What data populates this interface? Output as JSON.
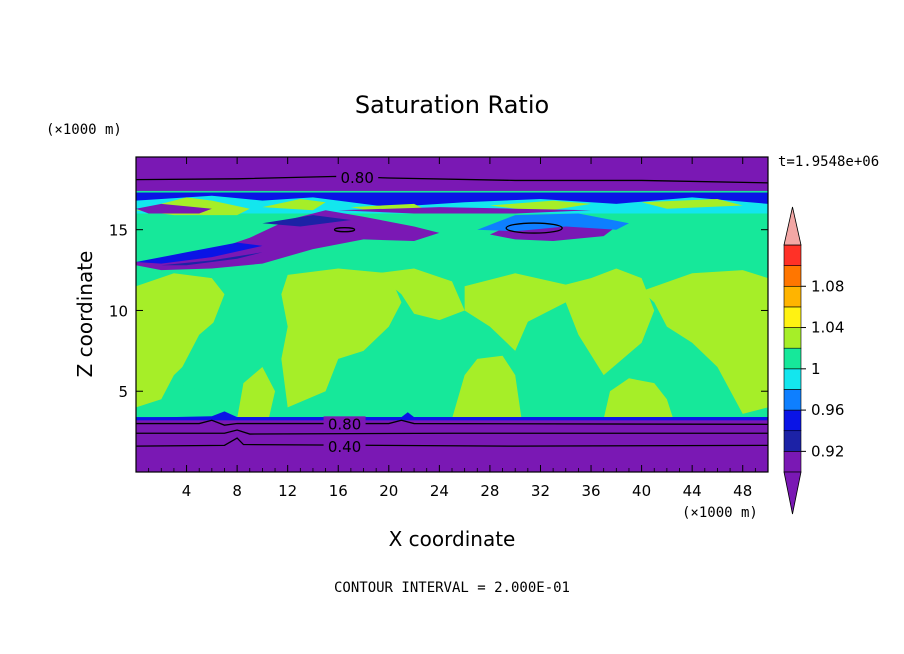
{
  "chart_data": {
    "type": "contour",
    "title": "Saturation Ratio",
    "xlabel": "X coordinate",
    "ylabel": "Z coordinate",
    "x_unit": "(×1000 m)",
    "y_unit": "(×1000 m)",
    "time_label": "t=1.9548e+06",
    "contour_interval_text": "CONTOUR INTERVAL = 2.000E-01",
    "xlim": [
      0,
      50
    ],
    "ylim": [
      0,
      19.5
    ],
    "x_ticks": [
      4,
      8,
      12,
      16,
      20,
      24,
      28,
      32,
      36,
      40,
      44,
      48
    ],
    "y_ticks": [
      5,
      10,
      15
    ],
    "contour_labels": [
      {
        "text": "0.80",
        "x": 17.5,
        "y": 18.2
      },
      {
        "text": "0.80",
        "x": 16.5,
        "y": 2.95
      },
      {
        "text": "0.40",
        "x": 16.5,
        "y": 1.55
      }
    ],
    "colorbar": {
      "levels": [
        0.9,
        0.92,
        0.94,
        0.96,
        0.98,
        1.0,
        1.02,
        1.04,
        1.06,
        1.08,
        1.1
      ],
      "tick_labels": [
        "0.92",
        "0.96",
        "1",
        "1.04",
        "1.08"
      ],
      "colors": [
        "#7a18b4",
        "#1c22a6",
        "#0a14e6",
        "#0e7fff",
        "#13e6ee",
        "#16e89a",
        "#a6ee28",
        "#fff212",
        "#ffb400",
        "#ff7600",
        "#ff3127"
      ],
      "extend_max_color": "#f3a7a5",
      "extend_min_color": "#7a18b4"
    }
  }
}
